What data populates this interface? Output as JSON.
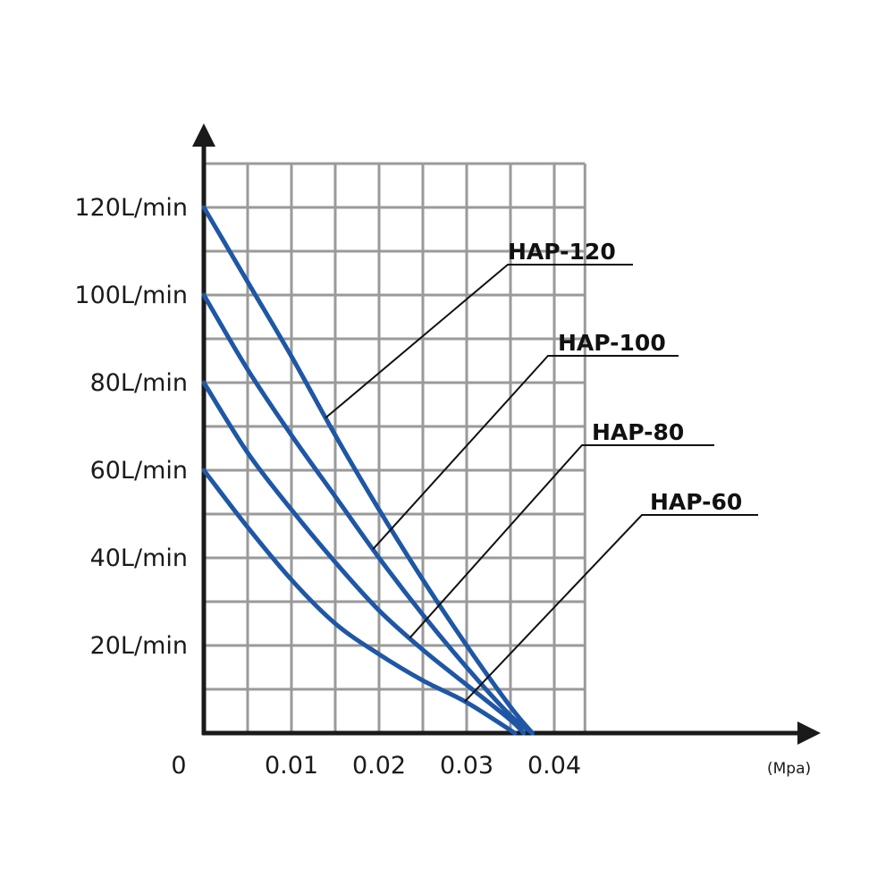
{
  "chart_data": {
    "type": "line",
    "x_unit": "(Mpa)",
    "x_origin_label": "0",
    "x_ticks": [
      {
        "value": 0.01,
        "label": "0.01"
      },
      {
        "value": 0.02,
        "label": "0.02"
      },
      {
        "value": 0.03,
        "label": "0.03"
      },
      {
        "value": 0.04,
        "label": "0.04"
      }
    ],
    "y_ticks": [
      {
        "value": 20,
        "label": "20L/min"
      },
      {
        "value": 40,
        "label": "40L/min"
      },
      {
        "value": 60,
        "label": "60L/min"
      },
      {
        "value": 80,
        "label": "80L/min"
      },
      {
        "value": 100,
        "label": "100L/min"
      },
      {
        "value": 120,
        "label": "120L/min"
      }
    ],
    "xlim": [
      0,
      0.0435
    ],
    "ylim": [
      0,
      130
    ],
    "grid": true,
    "series": [
      {
        "name": "HAP-120",
        "x": [
          0,
          0.005,
          0.01,
          0.015,
          0.02,
          0.025,
          0.03,
          0.035,
          0.0375
        ],
        "y": [
          120,
          103,
          86,
          68,
          51,
          35,
          20,
          6,
          0
        ]
      },
      {
        "name": "HAP-100",
        "x": [
          0,
          0.005,
          0.01,
          0.015,
          0.02,
          0.025,
          0.03,
          0.035,
          0.0375
        ],
        "y": [
          100,
          83,
          68,
          54,
          40,
          27,
          15,
          4,
          0
        ]
      },
      {
        "name": "HAP-80",
        "x": [
          0,
          0.005,
          0.01,
          0.015,
          0.02,
          0.025,
          0.03,
          0.035,
          0.0365
        ],
        "y": [
          80,
          64,
          51,
          39,
          28,
          19,
          11,
          3,
          0
        ]
      },
      {
        "name": "HAP-60",
        "x": [
          0,
          0.005,
          0.01,
          0.015,
          0.02,
          0.025,
          0.03,
          0.0355
        ],
        "y": [
          60,
          47,
          35,
          25,
          18,
          12,
          7,
          0
        ]
      }
    ],
    "annotations": [
      {
        "series": "HAP-120",
        "label": "HAP-120"
      },
      {
        "series": "HAP-100",
        "label": "HAP-100"
      },
      {
        "series": "HAP-80",
        "label": "HAP-80"
      },
      {
        "series": "HAP-60",
        "label": "HAP-60"
      }
    ],
    "colors": {
      "curve": "#1f57a4",
      "grid": "#9a9a9a",
      "axis": "#1a1a1a"
    }
  }
}
